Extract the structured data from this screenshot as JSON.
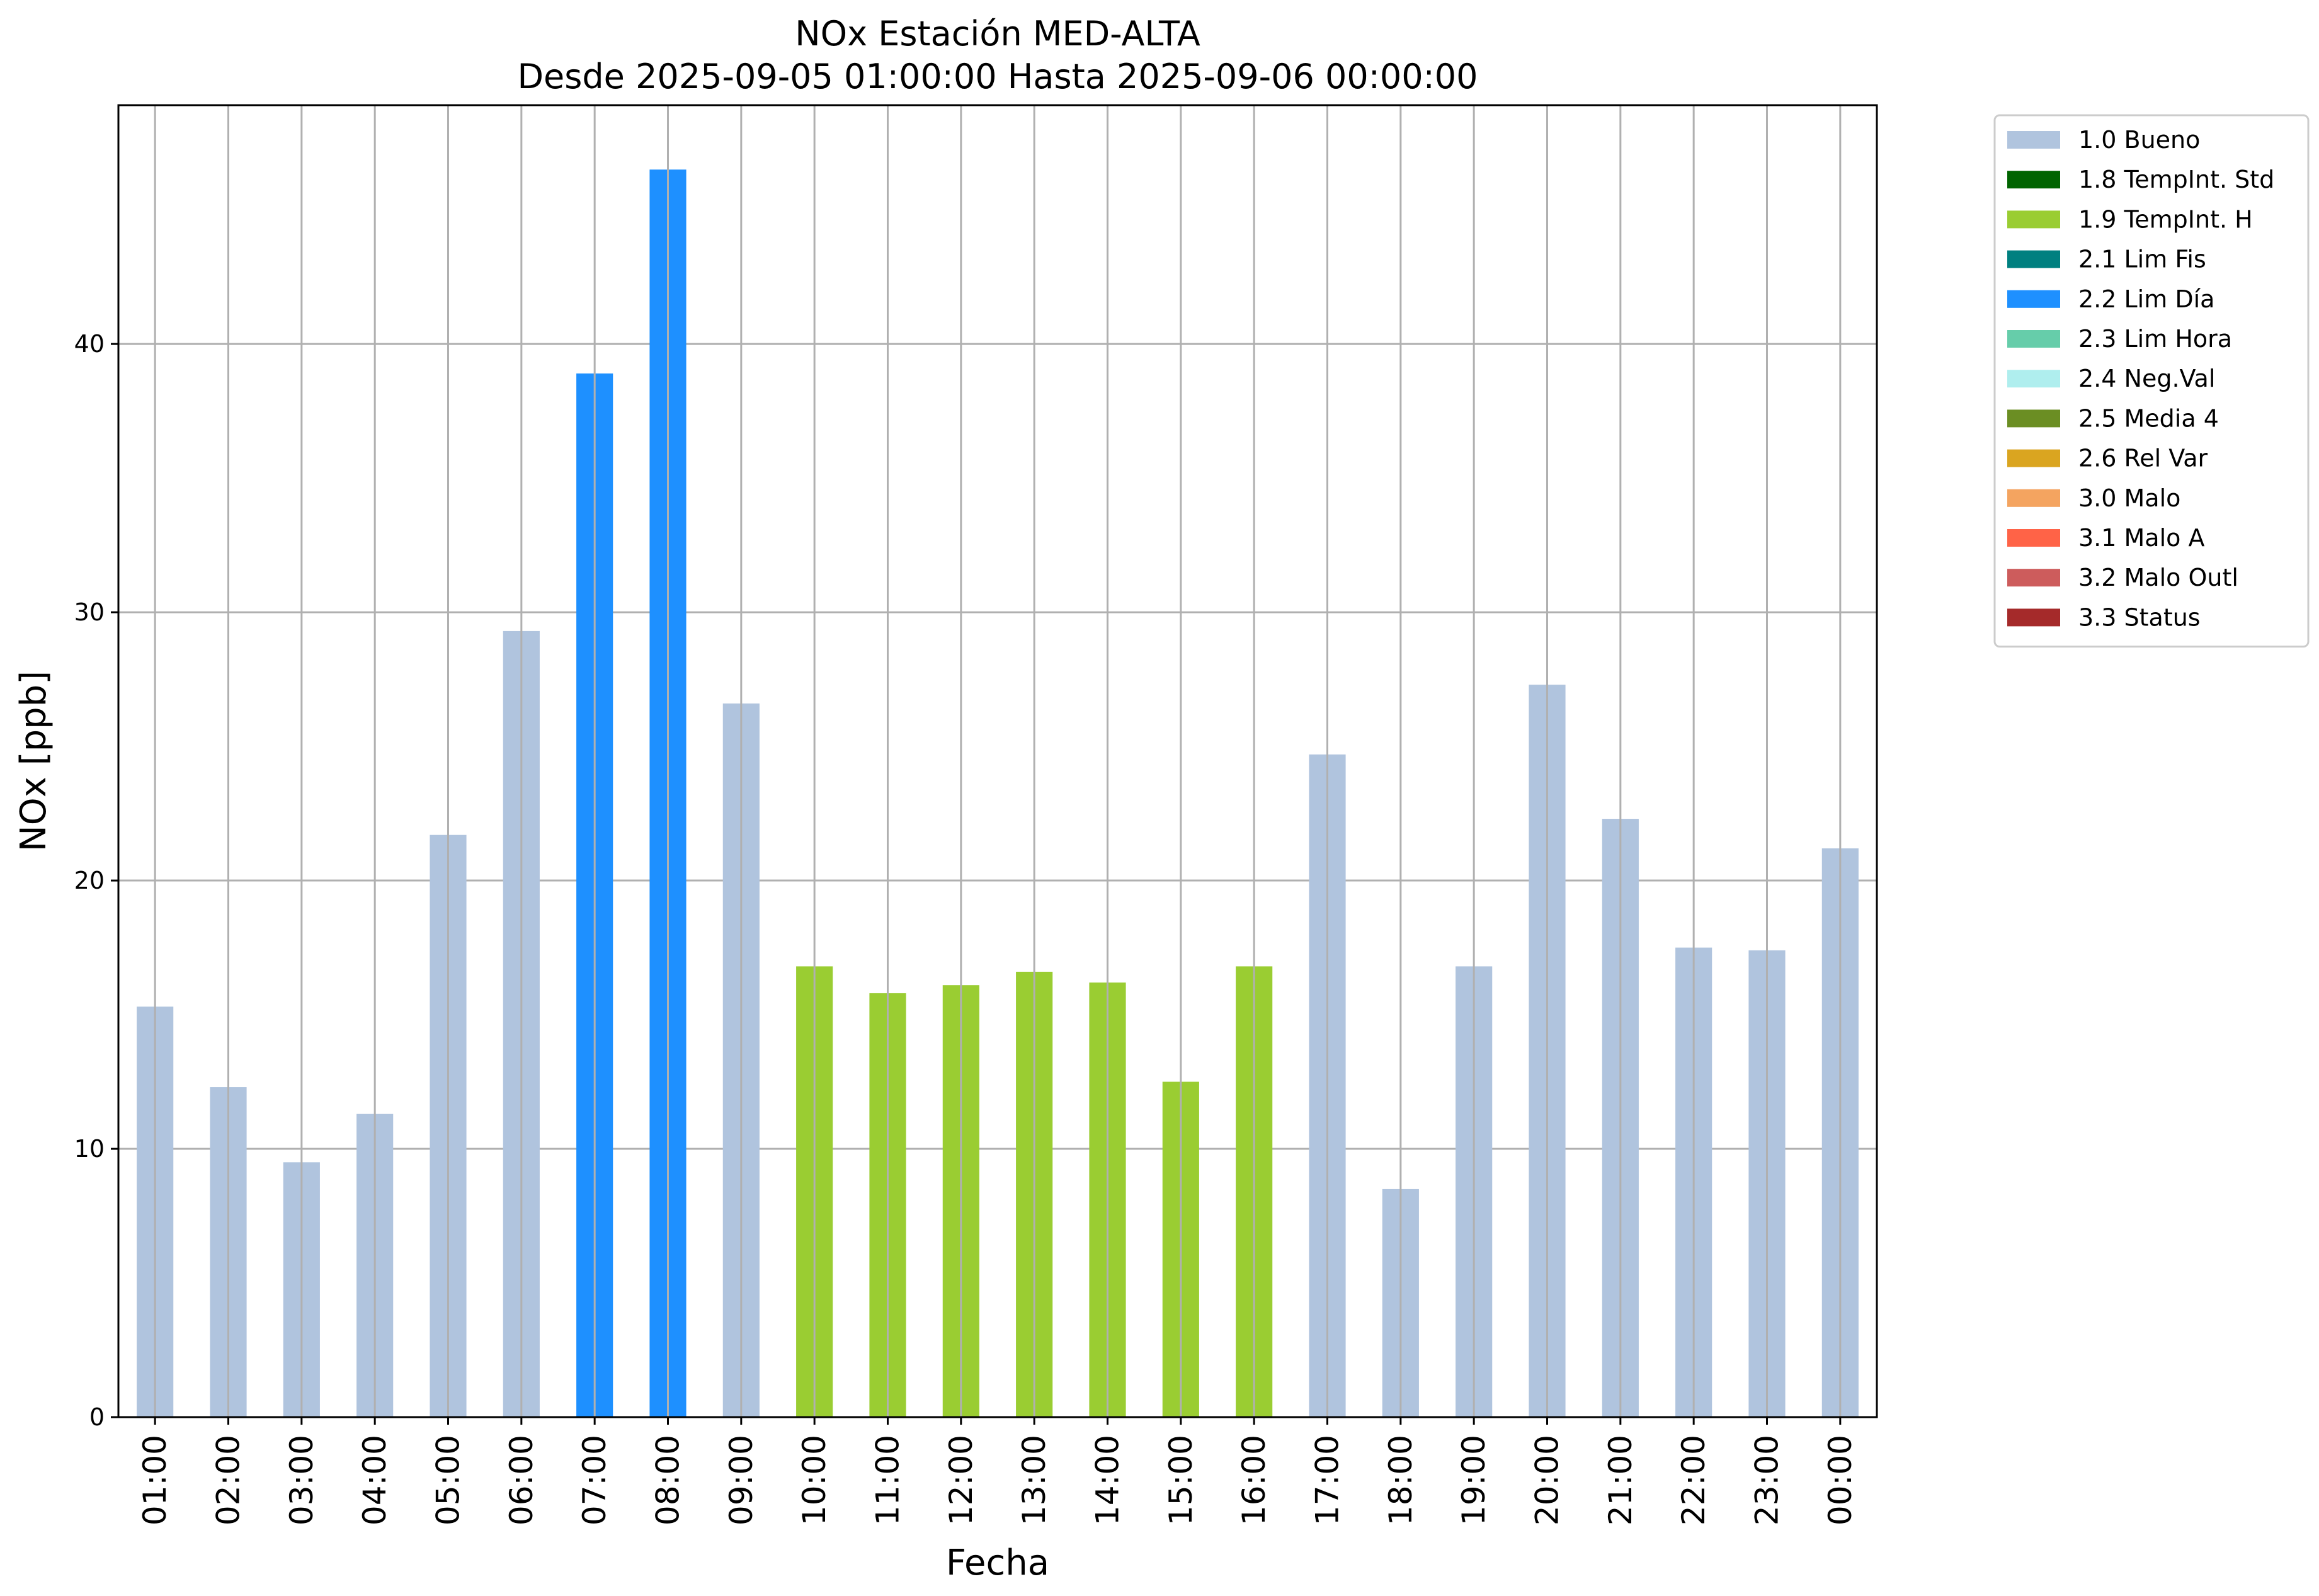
{
  "chart_data": {
    "type": "bar",
    "title": "NOx Estación MED-ALTA",
    "subtitle": "Desde 2025-09-05 01:00:00 Hasta 2025-09-06 00:00:00",
    "xlabel": "Fecha",
    "ylabel": "NOx [ppb]",
    "ylim": [
      0,
      48.9
    ],
    "yticks": [
      0,
      10,
      20,
      30,
      40
    ],
    "grid": true,
    "legend_position": "outside-top-right",
    "categories": [
      "01:00",
      "02:00",
      "03:00",
      "04:00",
      "05:00",
      "06:00",
      "07:00",
      "08:00",
      "09:00",
      "10:00",
      "11:00",
      "12:00",
      "13:00",
      "14:00",
      "15:00",
      "16:00",
      "17:00",
      "18:00",
      "19:00",
      "20:00",
      "21:00",
      "22:00",
      "23:00",
      "00:00"
    ],
    "values": [
      15.3,
      12.3,
      9.5,
      11.3,
      21.7,
      29.3,
      38.9,
      46.5,
      26.6,
      16.8,
      15.8,
      16.1,
      16.6,
      16.2,
      12.5,
      16.8,
      24.7,
      8.5,
      16.8,
      27.3,
      22.3,
      17.5,
      17.4,
      21.2
    ],
    "flags": [
      "1.0 Bueno",
      "1.0 Bueno",
      "1.0 Bueno",
      "1.0 Bueno",
      "1.0 Bueno",
      "1.0 Bueno",
      "2.2 Lim Día",
      "2.2 Lim Día",
      "1.0 Bueno",
      "1.9 TempInt. H",
      "1.9 TempInt. H",
      "1.9 TempInt. H",
      "1.9 TempInt. H",
      "1.9 TempInt. H",
      "1.9 TempInt. H",
      "1.9 TempInt. H",
      "1.0 Bueno",
      "1.0 Bueno",
      "1.0 Bueno",
      "1.0 Bueno",
      "1.0 Bueno",
      "1.0 Bueno",
      "1.0 Bueno",
      "1.0 Bueno"
    ],
    "legend": [
      {
        "label": "1.0 Bueno",
        "color": "#b0c4de"
      },
      {
        "label": "1.8 TempInt. Std",
        "color": "#006400"
      },
      {
        "label": "1.9 TempInt. H",
        "color": "#9acd32"
      },
      {
        "label": "2.1 Lim Fis",
        "color": "#008080"
      },
      {
        "label": "2.2 Lim Día",
        "color": "#1e90ff"
      },
      {
        "label": "2.3 Lim Hora",
        "color": "#66cdaa"
      },
      {
        "label": "2.4 Neg.Val",
        "color": "#afeeee"
      },
      {
        "label": "2.5 Media 4",
        "color": "#6b8e23"
      },
      {
        "label": "2.6 Rel Var",
        "color": "#daa520"
      },
      {
        "label": "3.0 Malo",
        "color": "#f4a460"
      },
      {
        "label": "3.1 Malo A",
        "color": "#ff6347"
      },
      {
        "label": "3.2 Malo Outl",
        "color": "#cd5c5c"
      },
      {
        "label": "3.3 Status",
        "color": "#a52a2a"
      }
    ]
  }
}
